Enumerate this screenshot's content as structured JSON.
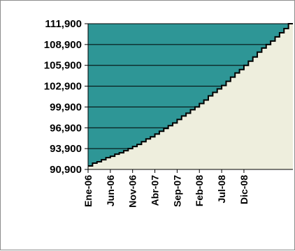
{
  "chart_data": {
    "type": "area",
    "title": "",
    "xlabel": "",
    "ylabel": "",
    "ylim": [
      90900,
      111900
    ],
    "yticks": [
      "111,900",
      "108,900",
      "105,900",
      "102,900",
      "99,900",
      "96,900",
      "93,900",
      "90,900"
    ],
    "ytick_values": [
      111900,
      108900,
      105900,
      102900,
      99900,
      96900,
      93900,
      90900
    ],
    "xtick_labels": [
      "Ene-06",
      "Jun-06",
      "Nov-06",
      "Abr-07",
      "Sep-07",
      "Feb-08",
      "Jul-08",
      "Dic-08"
    ],
    "grid": true,
    "legend": "none",
    "colors": {
      "plot_fill": "#2e9696",
      "area_fill": "#eeeedd",
      "line": "#000000",
      "grid": "#000000"
    },
    "series": [
      {
        "values": [
          91400,
          91800,
          92000,
          92300,
          92600,
          92800,
          93100,
          93300,
          93600,
          93900,
          94200,
          94500,
          94900,
          95300,
          95600,
          96000,
          96400,
          96800,
          97200,
          97600,
          98100,
          98600,
          99000,
          99500,
          99900,
          100400,
          100900,
          101500,
          102000,
          102500,
          103000,
          103600,
          104200,
          104800,
          105300,
          105900,
          106500,
          107100,
          107800,
          108400,
          108900,
          109400,
          110000,
          110600,
          111200,
          111900
        ]
      }
    ]
  }
}
